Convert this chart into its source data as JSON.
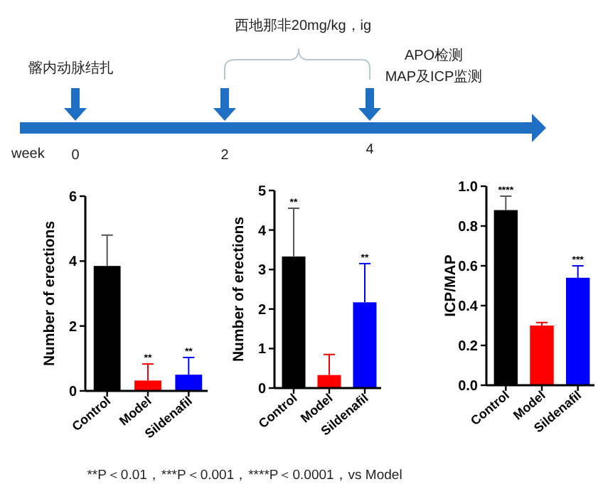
{
  "chart_data": [
    {
      "type": "other",
      "annotations": [
        "髂内动脉结扎",
        "西地那非20mg/kg，ig",
        "APO检测",
        "MAP及ICP监测",
        "week",
        "0",
        "2",
        "4"
      ]
    },
    {
      "type": "bar",
      "ylabel": "Number of erections",
      "categories": [
        "Control",
        "Model",
        "Sildenafil"
      ],
      "values": [
        3.85,
        0.32,
        0.5
      ],
      "colors": [
        "#000000",
        "#ff0000",
        "#0000ff"
      ],
      "errors": [
        [
          3.85,
          4.8
        ],
        [
          0.32,
          0.83
        ],
        [
          0.5,
          1.03
        ]
      ],
      "ylim": [
        0,
        6
      ],
      "yticks": [
        0,
        2,
        4,
        6
      ],
      "annotations": [
        {
          "text": "**",
          "x": "Model",
          "y": 0.83
        },
        {
          "text": "**",
          "x": "Sildenafil",
          "y": 1.03
        }
      ]
    },
    {
      "type": "bar",
      "ylabel": "Number of erections",
      "categories": [
        "Control",
        "Model",
        "Sildenafil"
      ],
      "values": [
        3.33,
        0.33,
        2.17
      ],
      "colors": [
        "#000000",
        "#ff0000",
        "#0000ff"
      ],
      "errors": [
        [
          3.33,
          4.55
        ],
        [
          0.33,
          0.85
        ],
        [
          2.17,
          3.15
        ]
      ],
      "ylim": [
        0,
        5
      ],
      "yticks": [
        0,
        1,
        2,
        3,
        4,
        5
      ],
      "annotations": [
        {
          "text": "**",
          "x": "Control",
          "y": 4.55
        },
        {
          "text": "**",
          "x": "Sildenafil",
          "y": 3.15
        }
      ]
    },
    {
      "type": "bar",
      "ylabel": "ICP/MAP",
      "categories": [
        "Control",
        "Model",
        "Sildenafil"
      ],
      "values": [
        0.88,
        0.3,
        0.54
      ],
      "colors": [
        "#000000",
        "#ff0000",
        "#0000ff"
      ],
      "errors": [
        [
          0.88,
          0.95
        ],
        [
          0.3,
          0.315
        ],
        [
          0.54,
          0.6
        ]
      ],
      "ylim": [
        0,
        1
      ],
      "yticks": [
        {
          "value": 0,
          "label": "0.0"
        },
        {
          "value": 0.2,
          "label": "0.2"
        },
        {
          "value": 0.4,
          "label": "0.4"
        },
        {
          "value": 0.6,
          "label": "0.6"
        },
        {
          "value": 0.8,
          "label": "0.8"
        },
        {
          "value": 1,
          "label": "1.0"
        }
      ],
      "annotations": [
        {
          "text": "****",
          "x": "Control",
          "y": 0.95
        },
        {
          "text": "***",
          "x": "Sildenafil",
          "y": 0.6
        },
        "**P＜0.01，***P＜0.001，****P＜0.0001，vs Model"
      ]
    }
  ]
}
